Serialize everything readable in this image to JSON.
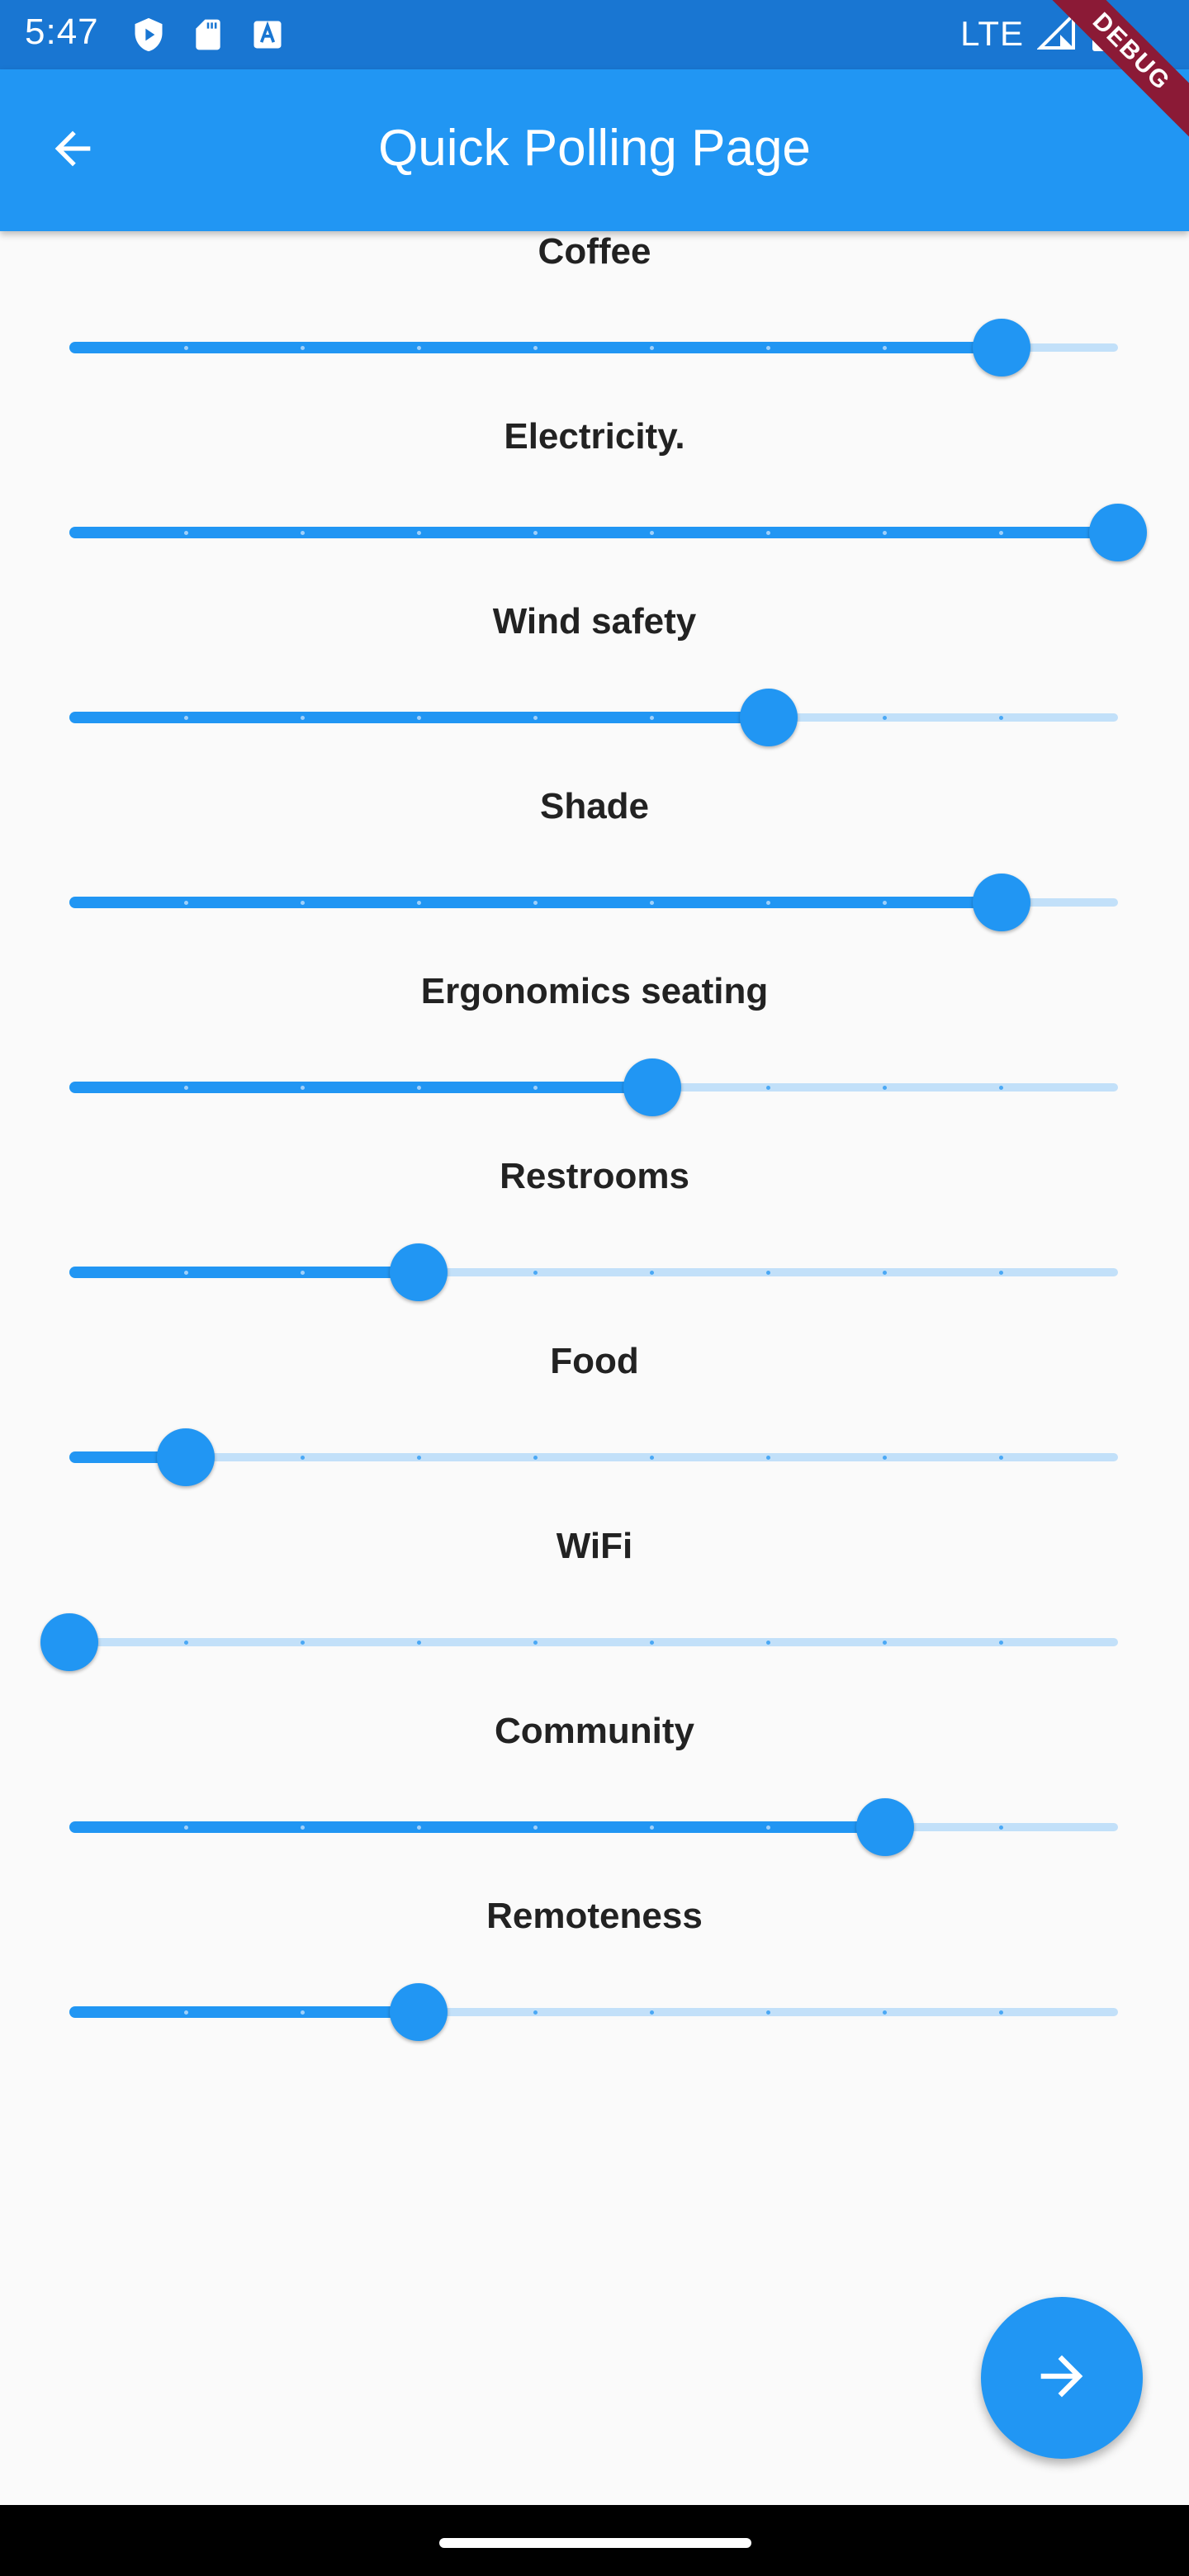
{
  "status_bar": {
    "time": "5:47",
    "network": "LTE",
    "left_icons": [
      "play-protect-icon",
      "sd-card-icon",
      "text-a-icon"
    ],
    "right_icons": [
      "signal-icon",
      "battery-icon"
    ]
  },
  "debug_banner": "DEBUG",
  "app_bar": {
    "title": "Quick Polling Page",
    "back_icon": "arrow-back-icon"
  },
  "colors": {
    "primary": "#2196f3",
    "primary_dark": "#1976d2",
    "track_inactive": "#c2e0f9",
    "background": "#fafafa",
    "label": "#222222"
  },
  "slider_divisions": 9,
  "polls": [
    {
      "label": "Coffee",
      "value": 8,
      "max": 9
    },
    {
      "label": "Electricity.",
      "value": 9,
      "max": 9
    },
    {
      "label": "Wind safety",
      "value": 6,
      "max": 9
    },
    {
      "label": "Shade",
      "value": 8,
      "max": 9
    },
    {
      "label": "Ergonomics seating",
      "value": 5,
      "max": 9
    },
    {
      "label": "Restrooms",
      "value": 3,
      "max": 9
    },
    {
      "label": "Food",
      "value": 1,
      "max": 9
    },
    {
      "label": "WiFi",
      "value": 0,
      "max": 9
    },
    {
      "label": "Community",
      "value": 7,
      "max": 9
    },
    {
      "label": "Remoteness",
      "value": 3,
      "max": 9
    }
  ],
  "fab": {
    "icon": "arrow-forward-icon"
  }
}
